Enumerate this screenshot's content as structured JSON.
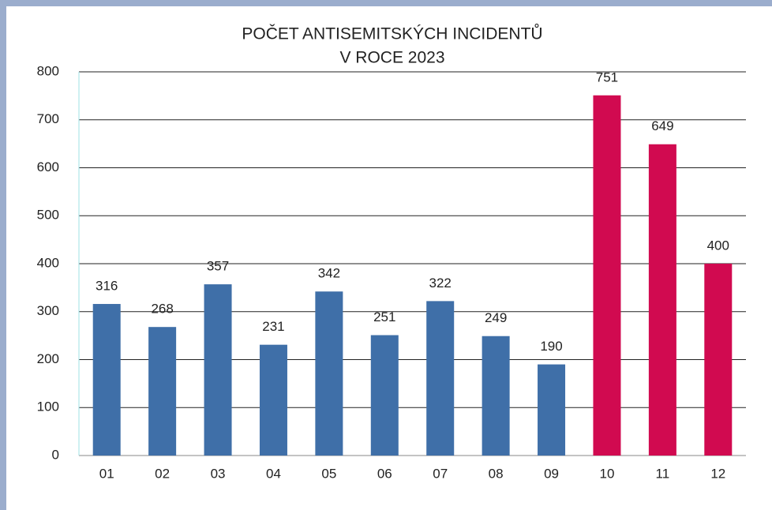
{
  "chart_data": {
    "type": "bar",
    "title": [
      "POČET ANTISEMITSKÝCH INCIDENTŮ",
      "V ROCE 2023"
    ],
    "categories": [
      "01",
      "02",
      "03",
      "04",
      "05",
      "06",
      "07",
      "08",
      "09",
      "10",
      "11",
      "12"
    ],
    "values": [
      316,
      268,
      357,
      231,
      342,
      251,
      322,
      249,
      190,
      751,
      649,
      400
    ],
    "colors": [
      "#3f6fa8",
      "#3f6fa8",
      "#3f6fa8",
      "#3f6fa8",
      "#3f6fa8",
      "#3f6fa8",
      "#3f6fa8",
      "#3f6fa8",
      "#3f6fa8",
      "#d10a50",
      "#d10a50",
      "#d10a50"
    ],
    "ylim": [
      0,
      800
    ],
    "yticks": [
      0,
      100,
      200,
      300,
      400,
      500,
      600,
      700,
      800
    ],
    "grid": true
  }
}
